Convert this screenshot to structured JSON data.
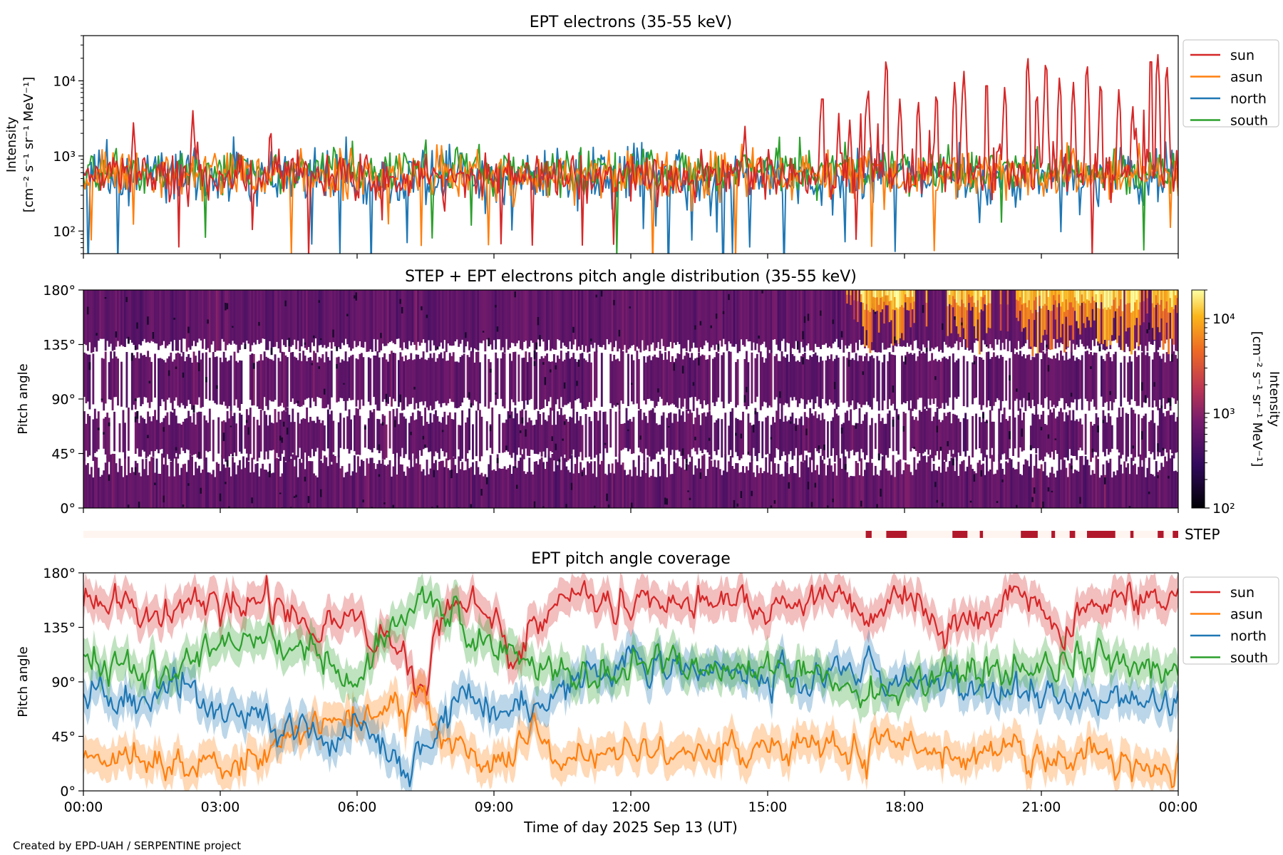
{
  "colors": {
    "sun": "#d62728",
    "asun": "#ff7f0e",
    "north": "#1f77b4",
    "south": "#2ca02c",
    "step": "#b2182b"
  },
  "credit": "Created by EPD-UAH / SERPENTINE project",
  "chart_data": [
    {
      "type": "line",
      "title": "EPT electrons (35-55 keV)",
      "ylabel_line1": "Intensity",
      "ylabel_line2": "[cm⁻² s⁻¹ sr⁻¹ MeV⁻¹]",
      "yscale": "log",
      "ylim": [
        50,
        40000
      ],
      "yticks": [
        {
          "value": 100,
          "label": "10²"
        },
        {
          "value": 1000,
          "label": "10³"
        },
        {
          "value": 10000,
          "label": "10⁴"
        }
      ],
      "xlim_hours": [
        0,
        24
      ],
      "legend": {
        "placement": "outside-top-right",
        "entries": [
          "sun",
          "asun",
          "north",
          "south"
        ]
      },
      "series": [
        {
          "name": "sun",
          "baseline": 550,
          "spread": 0.22,
          "spikes": [
            {
              "t": 1.1,
              "v": 2900
            },
            {
              "t": 2.4,
              "v": 4000
            },
            {
              "t": 2.5,
              "v": 1600
            },
            {
              "t": 4.1,
              "v": 2600
            },
            {
              "t": 14.5,
              "v": 2600
            },
            {
              "t": 16.2,
              "v": 8000
            },
            {
              "t": 16.8,
              "v": 3000
            },
            {
              "t": 17.2,
              "v": 9000
            },
            {
              "t": 17.6,
              "v": 22000
            },
            {
              "t": 17.9,
              "v": 6000
            },
            {
              "t": 18.3,
              "v": 6000
            },
            {
              "t": 18.7,
              "v": 8000
            },
            {
              "t": 19.1,
              "v": 10000
            },
            {
              "t": 19.3,
              "v": 14000
            },
            {
              "t": 19.8,
              "v": 12000
            },
            {
              "t": 20.2,
              "v": 9000
            },
            {
              "t": 20.7,
              "v": 23000
            },
            {
              "t": 20.9,
              "v": 8000
            },
            {
              "t": 21.1,
              "v": 21000
            },
            {
              "t": 21.4,
              "v": 12000
            },
            {
              "t": 21.7,
              "v": 10000
            },
            {
              "t": 22.0,
              "v": 19000
            },
            {
              "t": 22.3,
              "v": 11000
            },
            {
              "t": 22.7,
              "v": 8000
            },
            {
              "t": 23.0,
              "v": 5000
            },
            {
              "t": 23.4,
              "v": 25000
            },
            {
              "t": 23.55,
              "v": 24000
            },
            {
              "t": 23.75,
              "v": 18000
            }
          ]
        },
        {
          "name": "asun",
          "baseline": 560,
          "spread": 0.22,
          "spikes": []
        },
        {
          "name": "north",
          "baseline": 520,
          "spread": 0.26,
          "spikes": []
        },
        {
          "name": "south",
          "baseline": 640,
          "spread": 0.2,
          "spikes": [
            {
              "t": 7.5,
              "v": 1900
            },
            {
              "t": 5.5,
              "v": 1700
            }
          ]
        }
      ]
    },
    {
      "type": "heatmap",
      "title": "STEP + EPT electrons pitch angle distribution (35-55 keV)",
      "ylabel": "Pitch angle",
      "ylim": [
        0,
        180
      ],
      "yticks": [
        {
          "value": 0,
          "label": "0°"
        },
        {
          "value": 45,
          "label": "45°"
        },
        {
          "value": 90,
          "label": "90°"
        },
        {
          "value": 135,
          "label": "135°"
        },
        {
          "value": 180,
          "label": "180°"
        }
      ],
      "colorbar": {
        "label_line1": "Intensity",
        "label_line2": "[cm⁻² s⁻¹ sr⁻¹ MeV⁻¹]",
        "scale": "log",
        "range": [
          100,
          20000
        ],
        "ticks": [
          {
            "value": 100,
            "label": "10²"
          },
          {
            "value": 1000,
            "label": "10³"
          },
          {
            "value": 10000,
            "label": "10⁴"
          }
        ],
        "colormap": "inferno"
      },
      "xlim_hours": [
        0,
        24
      ]
    },
    {
      "type": "bar",
      "label": "STEP",
      "xlim_hours": [
        0,
        24
      ],
      "segments": [
        {
          "start": 17.15,
          "end": 17.28
        },
        {
          "start": 17.6,
          "end": 18.05
        },
        {
          "start": 19.05,
          "end": 19.38
        },
        {
          "start": 19.65,
          "end": 19.72
        },
        {
          "start": 20.55,
          "end": 20.92
        },
        {
          "start": 21.22,
          "end": 21.3
        },
        {
          "start": 21.62,
          "end": 21.74
        },
        {
          "start": 22.0,
          "end": 22.62
        },
        {
          "start": 22.95,
          "end": 23.02
        },
        {
          "start": 23.55,
          "end": 23.68
        },
        {
          "start": 23.88,
          "end": 24.0
        }
      ]
    },
    {
      "type": "line",
      "title": "EPT pitch angle coverage",
      "ylabel": "Pitch angle",
      "xlabel": "Time of day 2025 Sep 13 (UT)",
      "ylim": [
        0,
        180
      ],
      "yticks": [
        {
          "value": 0,
          "label": "0°"
        },
        {
          "value": 45,
          "label": "45°"
        },
        {
          "value": 90,
          "label": "90°"
        },
        {
          "value": 135,
          "label": "135°"
        },
        {
          "value": 180,
          "label": "180°"
        }
      ],
      "xticks": [
        "00:00",
        "03:00",
        "06:00",
        "09:00",
        "12:00",
        "15:00",
        "18:00",
        "21:00",
        "00:00"
      ],
      "legend": {
        "placement": "outside-top-right",
        "entries": [
          "sun",
          "asun",
          "north",
          "south"
        ]
      },
      "band_width_deg": 14,
      "series": [
        {
          "name": "sun",
          "keypoints": [
            [
              0,
              150
            ],
            [
              1,
              155
            ],
            [
              2,
              150
            ],
            [
              2.5,
              165
            ],
            [
              3,
              150
            ],
            [
              4,
              160
            ],
            [
              5,
              130
            ],
            [
              6,
              150
            ],
            [
              7,
              110
            ],
            [
              7.5,
              90
            ],
            [
              8,
              150
            ],
            [
              9,
              150
            ],
            [
              9.5,
              100
            ],
            [
              10,
              150
            ],
            [
              11,
              160
            ],
            [
              12,
              155
            ],
            [
              14,
              155
            ],
            [
              15,
              150
            ],
            [
              16,
              165
            ],
            [
              17,
              150
            ],
            [
              18,
              160
            ],
            [
              19,
              130
            ],
            [
              20,
              160
            ],
            [
              21,
              150
            ],
            [
              21.5,
              120
            ],
            [
              22,
              155
            ],
            [
              23,
              160
            ],
            [
              24,
              160
            ]
          ]
        },
        {
          "name": "asun",
          "keypoints": [
            [
              0,
              30
            ],
            [
              1,
              28
            ],
            [
              2,
              25
            ],
            [
              3,
              30
            ],
            [
              4,
              35
            ],
            [
              5,
              45
            ],
            [
              6,
              60
            ],
            [
              6.5,
              65
            ],
            [
              7,
              60
            ],
            [
              7.5,
              80
            ],
            [
              8,
              40
            ],
            [
              9,
              25
            ],
            [
              10,
              40
            ],
            [
              11,
              30
            ],
            [
              12,
              35
            ],
            [
              14,
              35
            ],
            [
              16,
              35
            ],
            [
              17,
              30
            ],
            [
              18,
              40
            ],
            [
              19,
              25
            ],
            [
              20,
              30
            ],
            [
              21,
              25
            ],
            [
              22,
              30
            ],
            [
              23,
              20
            ],
            [
              24,
              25
            ]
          ]
        },
        {
          "name": "north",
          "keypoints": [
            [
              0,
              80
            ],
            [
              1,
              75
            ],
            [
              2,
              90
            ],
            [
              3,
              65
            ],
            [
              4,
              55
            ],
            [
              5,
              45
            ],
            [
              5.5,
              30
            ],
            [
              6,
              60
            ],
            [
              6.5,
              40
            ],
            [
              7,
              15
            ],
            [
              7.5,
              40
            ],
            [
              8,
              70
            ],
            [
              9,
              60
            ],
            [
              10,
              70
            ],
            [
              11,
              90
            ],
            [
              12,
              110
            ],
            [
              14,
              95
            ],
            [
              16,
              90
            ],
            [
              17,
              100
            ],
            [
              18,
              90
            ],
            [
              19,
              85
            ],
            [
              20,
              75
            ],
            [
              21,
              85
            ],
            [
              22,
              70
            ],
            [
              23,
              75
            ],
            [
              24,
              70
            ]
          ]
        },
        {
          "name": "south",
          "keypoints": [
            [
              0,
              110
            ],
            [
              1,
              100
            ],
            [
              2,
              95
            ],
            [
              3,
              120
            ],
            [
              4,
              125
            ],
            [
              5,
              110
            ],
            [
              6,
              90
            ],
            [
              7,
              150
            ],
            [
              7.5,
              160
            ],
            [
              8,
              140
            ],
            [
              8.5,
              120
            ],
            [
              9,
              120
            ],
            [
              10,
              100
            ],
            [
              11,
              90
            ],
            [
              12,
              100
            ],
            [
              14,
              105
            ],
            [
              16,
              95
            ],
            [
              17,
              80
            ],
            [
              18,
              85
            ],
            [
              19,
              95
            ],
            [
              20,
              100
            ],
            [
              21,
              105
            ],
            [
              22,
              110
            ],
            [
              23,
              100
            ],
            [
              24,
              110
            ]
          ]
        }
      ]
    }
  ]
}
